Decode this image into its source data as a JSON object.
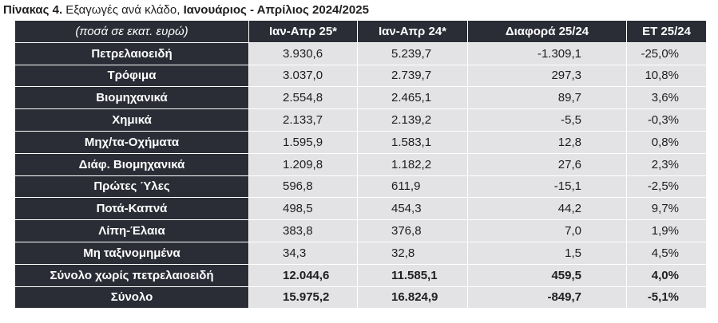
{
  "caption": {
    "label": "Πίνακας 4.",
    "description": " Εξαγωγές ανά κλάδο, ",
    "period": "Ιανουάριος - Απρίλιος 2024/2025"
  },
  "table": {
    "headers": [
      "(ποσά σε εκατ. ευρώ)",
      "Ιαν-Απρ 25*",
      "Ιαν-Απρ 24*",
      "Διαφορά 25/24",
      "ΕΤ 25/24"
    ],
    "rows": [
      {
        "sector": "Πετρελαιοειδή",
        "jan_apr_25": "3.930,6",
        "jan_apr_24": "5.239,7",
        "difference": "-1.309,1",
        "change": "-25,0%"
      },
      {
        "sector": "Τρόφιμα",
        "jan_apr_25": "3.037,0",
        "jan_apr_24": "2.739,7",
        "difference": "297,3",
        "change": "10,8%"
      },
      {
        "sector": "Βιομηχανικά",
        "jan_apr_25": "2.554,8",
        "jan_apr_24": "2.465,1",
        "difference": "89,7",
        "change": "3,6%"
      },
      {
        "sector": "Χημικά",
        "jan_apr_25": "2.133,7",
        "jan_apr_24": "2.139,2",
        "difference": "-5,5",
        "change": "-0,3%"
      },
      {
        "sector": "Μηχ/τα-Οχήματα",
        "jan_apr_25": "1.595,9",
        "jan_apr_24": "1.583,1",
        "difference": "12,8",
        "change": "0,8%"
      },
      {
        "sector": "Διάφ. Βιομηχανικά",
        "jan_apr_25": "1.209,8",
        "jan_apr_24": "1.182,2",
        "difference": "27,6",
        "change": "2,3%"
      },
      {
        "sector": "Πρώτες Ύλες",
        "jan_apr_25": "596,8",
        "jan_apr_24": "611,9",
        "difference": "-15,1",
        "change": "-2,5%"
      },
      {
        "sector": "Ποτά-Καπνά",
        "jan_apr_25": "498,5",
        "jan_apr_24": "454,3",
        "difference": "44,2",
        "change": "9,7%"
      },
      {
        "sector": "Λίπη-Έλαια",
        "jan_apr_25": "383,8",
        "jan_apr_24": "376,8",
        "difference": "7,0",
        "change": "1,9%"
      },
      {
        "sector": "Μη ταξινομημένα",
        "jan_apr_25": "34,3",
        "jan_apr_24": "32,8",
        "difference": "1,5",
        "change": "4,5%"
      }
    ],
    "totals": [
      {
        "sector": "Σύνολο χωρίς πετρελαιοειδή",
        "jan_apr_25": "12.044,6",
        "jan_apr_24": "11.585,1",
        "difference": "459,5",
        "change": "4,0%"
      },
      {
        "sector": "Σύνολο",
        "jan_apr_25": "15.975,2",
        "jan_apr_24": "16.824,9",
        "difference": "-849,7",
        "change": "-5,1%"
      }
    ]
  }
}
